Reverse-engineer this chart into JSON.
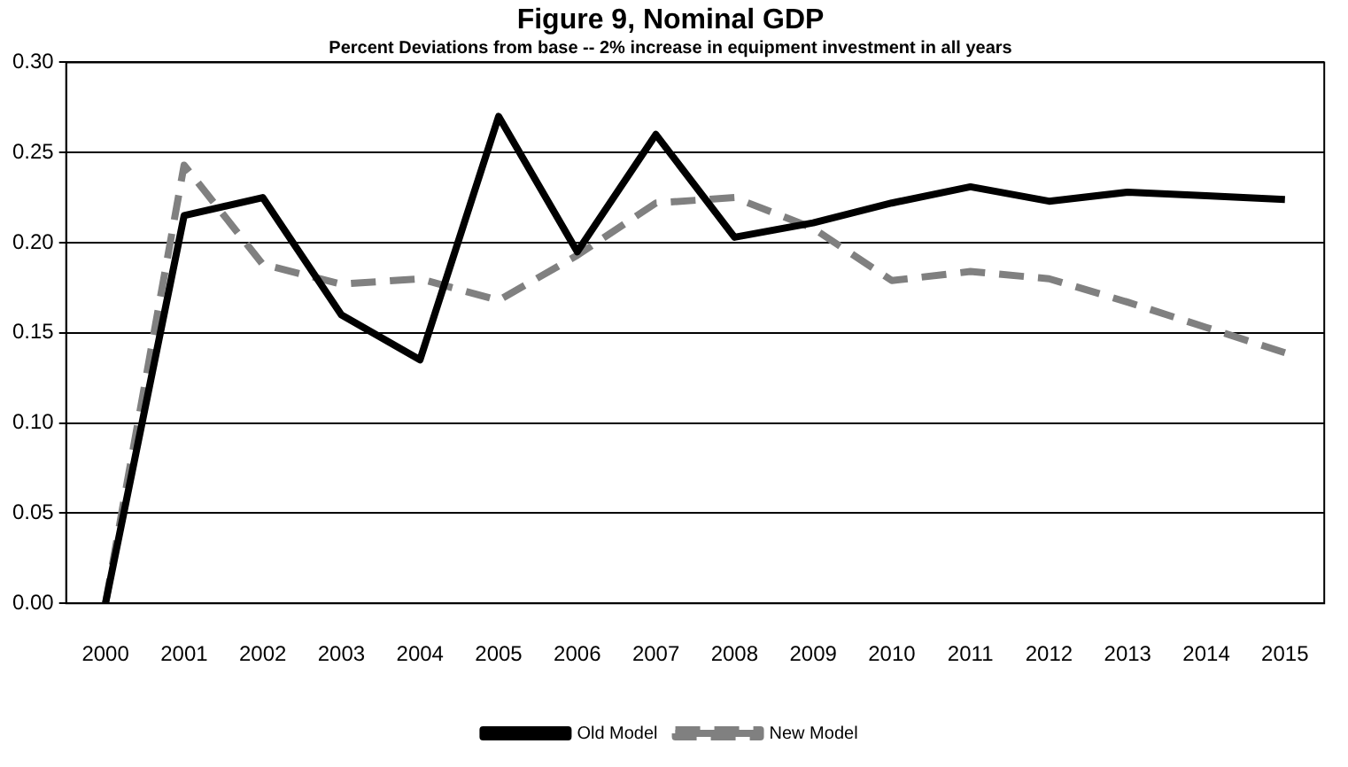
{
  "chart_data": {
    "type": "line",
    "title": "Figure 9, Nominal GDP",
    "subtitle": "Percent Deviations from base -- 2% increase in equipment investment in all years",
    "categories": [
      "2000",
      "2001",
      "2002",
      "2003",
      "2004",
      "2005",
      "2006",
      "2007",
      "2008",
      "2009",
      "2010",
      "2011",
      "2012",
      "2013",
      "2014",
      "2015"
    ],
    "series": [
      {
        "name": "Old Model",
        "color": "#000000",
        "line_style": "solid",
        "values": [
          0,
          0.215,
          0.225,
          0.16,
          0.135,
          0.27,
          0.195,
          0.26,
          0.203,
          0.211,
          0.222,
          0.231,
          0.223,
          0.228,
          0.226,
          0.224
        ]
      },
      {
        "name": "New Model",
        "color": "#808080",
        "line_style": "dashed",
        "values": [
          0,
          0.243,
          0.188,
          0.177,
          0.18,
          0.168,
          0.193,
          0.222,
          0.225,
          0.208,
          0.179,
          0.184,
          0.18,
          0.167,
          0.153,
          0.139
        ]
      }
    ],
    "ylim": [
      0,
      0.3
    ],
    "yticks": [
      {
        "value": 0,
        "label": "0.00"
      },
      {
        "value": 0.05,
        "label": "0.05"
      },
      {
        "value": 0.1,
        "label": "0.10"
      },
      {
        "value": 0.15,
        "label": "0.15"
      },
      {
        "value": 0.2,
        "label": "0.20"
      },
      {
        "value": 0.25,
        "label": "0.25"
      },
      {
        "value": 0.3,
        "label": "0.30"
      }
    ],
    "grid": "y",
    "legend": "bottom",
    "marker": "none"
  }
}
